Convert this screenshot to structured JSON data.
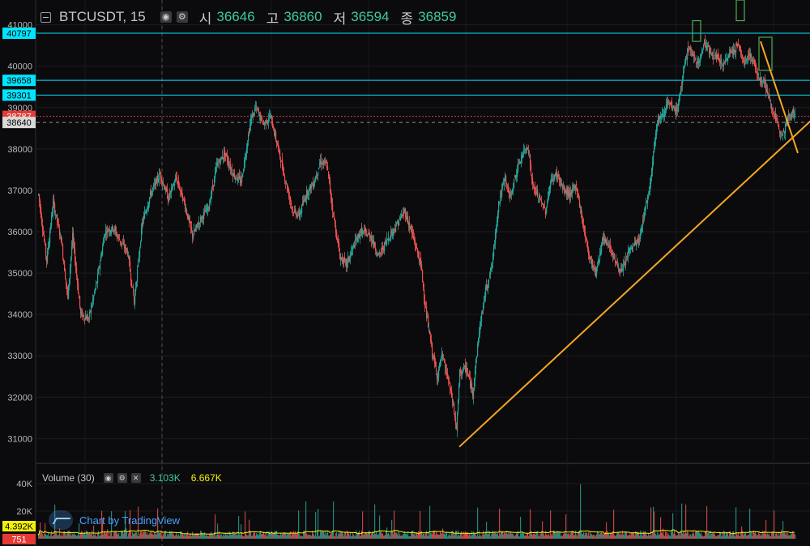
{
  "header": {
    "symbol": "BTCUSDT, 15",
    "open_label": "시",
    "open": "36646",
    "high_label": "고",
    "high": "36860",
    "low_label": "저",
    "low": "36594",
    "close_label": "종",
    "close": "36859"
  },
  "volume_pane": {
    "title": "Volume (30)",
    "value1": "3.103K",
    "value2": "6.667K",
    "axis_ticks": [
      "40K",
      "20K"
    ],
    "labels": {
      "ma": "4.392K",
      "last": "751"
    }
  },
  "branding": {
    "text": "Chart by TradingView"
  },
  "colors": {
    "up": "#26a69a",
    "down": "#ef5350",
    "cyan": "#00e5ff",
    "trend": "#f5a623",
    "ma": "#f2f20a"
  },
  "chart_data": {
    "type": "candlestick",
    "symbol": "BTCUSDT",
    "interval": "15",
    "price_ticks": [
      41000,
      40000,
      39000,
      38000,
      37000,
      36000,
      35000,
      34000,
      33000,
      32000,
      31000
    ],
    "ylim": [
      30400,
      41600
    ],
    "horizontal_levels": [
      {
        "price": 40797,
        "label": "40797",
        "color": "#00e5ff"
      },
      {
        "price": 39658,
        "label": "39658",
        "color": "#00e5ff"
      },
      {
        "price": 39301,
        "label": "39301",
        "color": "#00e5ff"
      },
      {
        "price": 38787,
        "label": "38787",
        "color": "#e53935"
      },
      {
        "price": 38640,
        "label": "38640",
        "color": "#888888"
      }
    ],
    "price_path": [
      [
        0,
        36900
      ],
      [
        10,
        35300
      ],
      [
        18,
        36700
      ],
      [
        28,
        35800
      ],
      [
        36,
        34400
      ],
      [
        42,
        35900
      ],
      [
        52,
        34000
      ],
      [
        62,
        33900
      ],
      [
        72,
        34800
      ],
      [
        82,
        36000
      ],
      [
        92,
        36100
      ],
      [
        100,
        35800
      ],
      [
        110,
        35500
      ],
      [
        118,
        34300
      ],
      [
        128,
        36200
      ],
      [
        138,
        36900
      ],
      [
        150,
        37400
      ],
      [
        160,
        36800
      ],
      [
        170,
        37300
      ],
      [
        180,
        36700
      ],
      [
        190,
        35900
      ],
      [
        200,
        36300
      ],
      [
        210,
        36600
      ],
      [
        220,
        37600
      ],
      [
        230,
        37900
      ],
      [
        240,
        37400
      ],
      [
        250,
        37200
      ],
      [
        262,
        38700
      ],
      [
        268,
        39000
      ],
      [
        278,
        38600
      ],
      [
        286,
        38800
      ],
      [
        296,
        38000
      ],
      [
        304,
        37300
      ],
      [
        314,
        36500
      ],
      [
        322,
        36400
      ],
      [
        330,
        36900
      ],
      [
        340,
        37200
      ],
      [
        348,
        37700
      ],
      [
        356,
        37600
      ],
      [
        364,
        36400
      ],
      [
        372,
        35400
      ],
      [
        380,
        35200
      ],
      [
        390,
        35700
      ],
      [
        398,
        36000
      ],
      [
        410,
        35900
      ],
      [
        420,
        35400
      ],
      [
        430,
        35800
      ],
      [
        440,
        36100
      ],
      [
        452,
        36500
      ],
      [
        462,
        35900
      ],
      [
        472,
        35200
      ],
      [
        478,
        34100
      ],
      [
        486,
        33100
      ],
      [
        492,
        32500
      ],
      [
        498,
        33000
      ],
      [
        506,
        32400
      ],
      [
        512,
        31800
      ],
      [
        516,
        31200
      ],
      [
        520,
        32600
      ],
      [
        528,
        32700
      ],
      [
        536,
        32100
      ],
      [
        544,
        33600
      ],
      [
        552,
        34600
      ],
      [
        560,
        35200
      ],
      [
        568,
        36700
      ],
      [
        576,
        37300
      ],
      [
        582,
        36800
      ],
      [
        588,
        37300
      ],
      [
        596,
        37800
      ],
      [
        604,
        38100
      ],
      [
        610,
        37100
      ],
      [
        618,
        36800
      ],
      [
        626,
        36500
      ],
      [
        632,
        37200
      ],
      [
        640,
        37400
      ],
      [
        648,
        37000
      ],
      [
        656,
        36900
      ],
      [
        664,
        37100
      ],
      [
        672,
        36200
      ],
      [
        680,
        35400
      ],
      [
        688,
        35000
      ],
      [
        696,
        35800
      ],
      [
        704,
        35700
      ],
      [
        714,
        35200
      ],
      [
        720,
        35000
      ],
      [
        728,
        35500
      ],
      [
        736,
        35700
      ],
      [
        742,
        35800
      ],
      [
        748,
        36500
      ],
      [
        754,
        37000
      ],
      [
        760,
        38100
      ],
      [
        764,
        38700
      ],
      [
        770,
        38800
      ],
      [
        776,
        39100
      ],
      [
        782,
        39000
      ],
      [
        788,
        38900
      ],
      [
        796,
        39800
      ],
      [
        802,
        40500
      ],
      [
        808,
        40200
      ],
      [
        816,
        40100
      ],
      [
        822,
        40600
      ],
      [
        830,
        40300
      ],
      [
        838,
        40200
      ],
      [
        846,
        40000
      ],
      [
        852,
        40300
      ],
      [
        858,
        40400
      ],
      [
        864,
        40500
      ],
      [
        870,
        40100
      ],
      [
        878,
        40300
      ],
      [
        884,
        40000
      ],
      [
        890,
        39700
      ],
      [
        896,
        39600
      ],
      [
        902,
        39200
      ],
      [
        908,
        38800
      ],
      [
        914,
        38500
      ],
      [
        920,
        38400
      ],
      [
        926,
        38800
      ],
      [
        934,
        38900
      ]
    ],
    "trendlines": [
      {
        "from": [
          520,
          30800
        ],
        "to": [
          955,
          38700
        ],
        "color": "#f5a623"
      },
      {
        "from": [
          892,
          40600
        ],
        "to": [
          938,
          37900
        ],
        "color": "#f5a623"
      }
    ],
    "annotation_boxes": [
      {
        "x": [
          808,
          818
        ],
        "price": [
          40600,
          41100
        ],
        "color": "#4caf50"
      },
      {
        "x": [
          862,
          872
        ],
        "price": [
          41100,
          41600
        ],
        "color": "#4caf50"
      },
      {
        "x": [
          890,
          906
        ],
        "price": [
          39900,
          40700
        ],
        "color": "#4caf50"
      }
    ],
    "volume": {
      "ylim": [
        0,
        50000
      ],
      "ticks": [
        40000,
        20000
      ],
      "ma_length": 30
    }
  }
}
